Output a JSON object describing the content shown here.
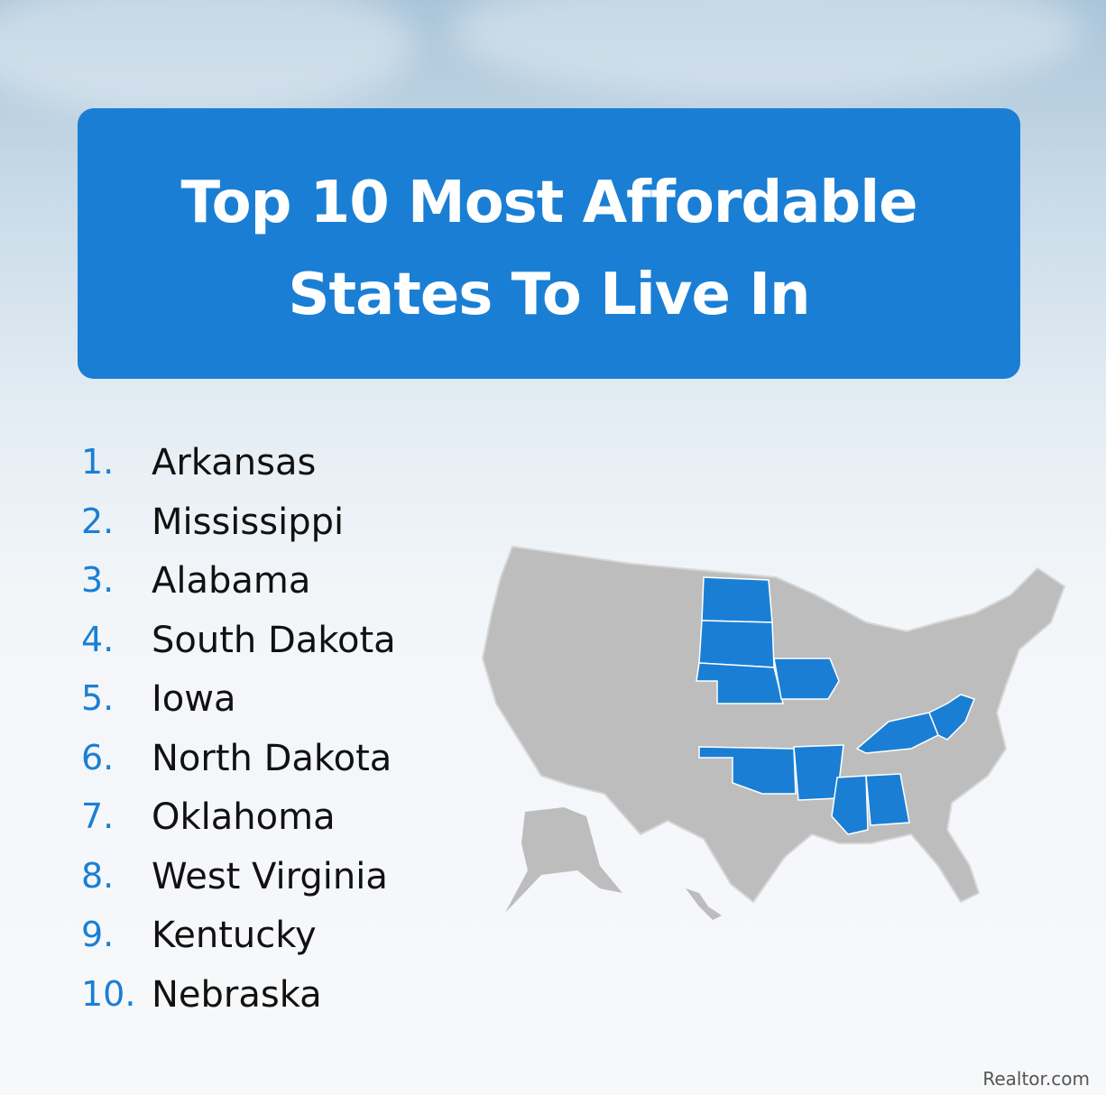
{
  "header": {
    "title_lines": [
      "Top 10 Most Affordable",
      "States To Live In"
    ]
  },
  "list": {
    "items": [
      {
        "number": "1.",
        "name": "Arkansas"
      },
      {
        "number": "2.",
        "name": "Mississippi"
      },
      {
        "number": "3.",
        "name": "Alabama"
      },
      {
        "number": "4.",
        "name": "South Dakota"
      },
      {
        "number": "5.",
        "name": "Iowa"
      },
      {
        "number": "6.",
        "name": "North Dakota"
      },
      {
        "number": "7.",
        "name": "Oklahoma"
      },
      {
        "number": "8.",
        "name": "West Virginia"
      },
      {
        "number": "9.",
        "name": "Kentucky"
      },
      {
        "number": "10.",
        "name": "Nebraska"
      }
    ]
  },
  "footer": {
    "watermark": "Realtor.com"
  }
}
